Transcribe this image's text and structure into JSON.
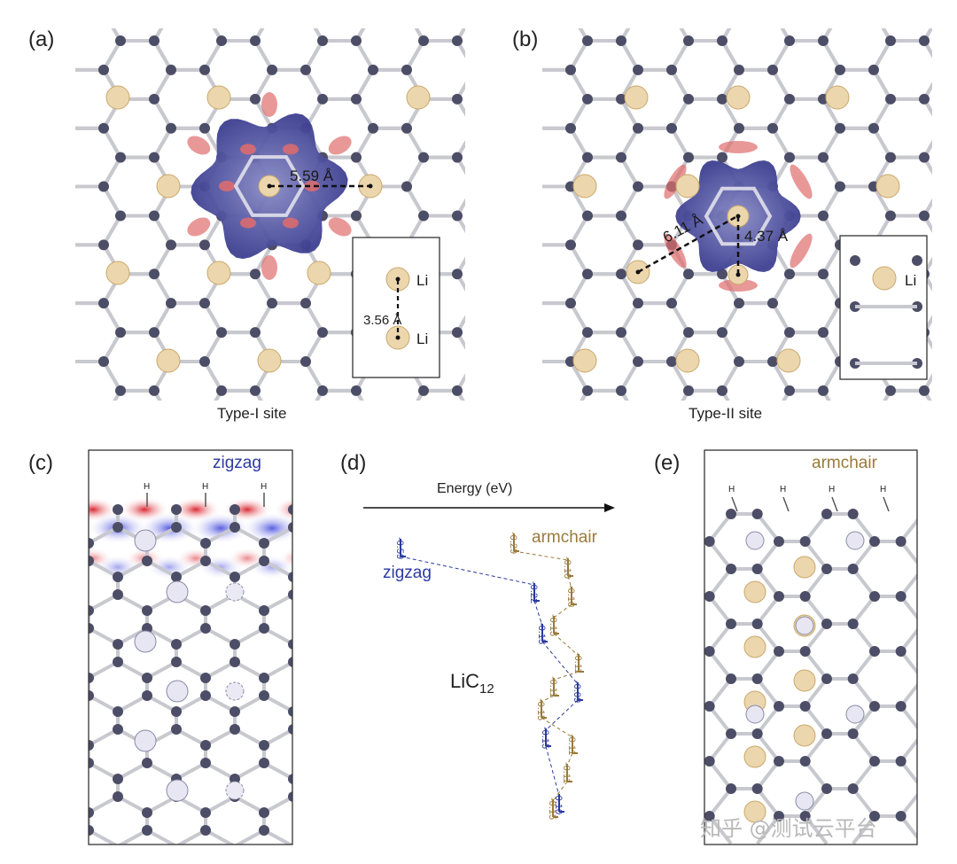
{
  "panels": {
    "a": {
      "label": "(a)",
      "caption": "Type-I site",
      "distance": "5.59 Å",
      "inset": {
        "top_atom": "Li",
        "bottom_atom": "Li",
        "distance": "3.56 Å"
      }
    },
    "b": {
      "label": "(b)",
      "caption": "Type-II site",
      "distance_long": "6.11 Å",
      "distance_short": "4.37 Å",
      "inset": {
        "atom": "Li"
      }
    },
    "c": {
      "label": "(c)",
      "edge": "zigzag",
      "hydrogen": "H"
    },
    "d": {
      "label": "(d)",
      "axis_title": "Energy (eV)",
      "compound": "LiC",
      "subscript": "12",
      "zigzag_label": "zigzag",
      "armchair_label": "armchair"
    },
    "e": {
      "label": "(e)",
      "edge": "armchair",
      "hydrogen": "H"
    }
  },
  "chart_data": {
    "type": "energy-level diagram",
    "xlabel": "Energy (eV)",
    "series": [
      {
        "name": "zigzag",
        "color": "#2b3a9e",
        "values": [
          -0.59,
          -0.22,
          -0.15,
          -0.09,
          -0.15,
          -0.1
        ]
      },
      {
        "name": "armchair",
        "color": "#9a7a3a",
        "values": [
          -0.29,
          -0.1,
          -0.1,
          -0.15,
          -0.11,
          -0.11,
          -0.15,
          -0.11,
          -0.11,
          -0.15
        ]
      }
    ]
  },
  "colors": {
    "carbon": "#4c4d66",
    "bond": "#c8c8cf",
    "lithium": "#ecd6ad",
    "lithium_edge": "#c9a86c",
    "charge_blue": "#5a5ca6",
    "charge_red": "#e06c6c"
  },
  "watermark": "知乎 @测试云平台"
}
